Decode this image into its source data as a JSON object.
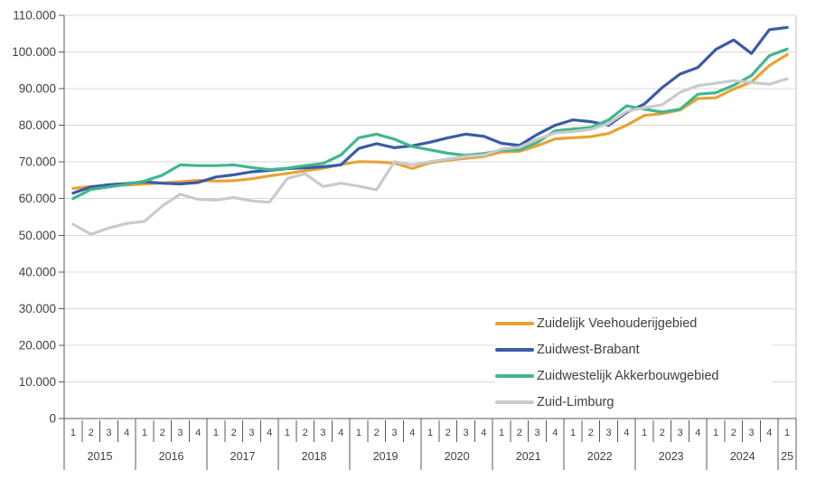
{
  "chart_data": {
    "type": "line",
    "title": "",
    "xlabel": "",
    "ylabel": "",
    "ylim": [
      0,
      110000
    ],
    "grid": true,
    "legend_position": "inside-bottom-right",
    "y_axis": {
      "ticks": [
        {
          "v": 0,
          "label": "0"
        },
        {
          "v": 10000,
          "label": "10.000"
        },
        {
          "v": 20000,
          "label": "20.000"
        },
        {
          "v": 30000,
          "label": "30.000"
        },
        {
          "v": 40000,
          "label": "40.000"
        },
        {
          "v": 50000,
          "label": "50.000"
        },
        {
          "v": 60000,
          "label": "60.000"
        },
        {
          "v": 70000,
          "label": "70.000"
        },
        {
          "v": 80000,
          "label": "80.000"
        },
        {
          "v": 90000,
          "label": "90.000"
        },
        {
          "v": 100000,
          "label": "100.000"
        },
        {
          "v": 110000,
          "label": "110.000"
        }
      ]
    },
    "x_axis": {
      "years": [
        {
          "label": "2015",
          "quarters": [
            "1",
            "2",
            "3",
            "4"
          ]
        },
        {
          "label": "2016",
          "quarters": [
            "1",
            "2",
            "3",
            "4"
          ]
        },
        {
          "label": "2017",
          "quarters": [
            "1",
            "2",
            "3",
            "4"
          ]
        },
        {
          "label": "2018",
          "quarters": [
            "1",
            "2",
            "3",
            "4"
          ]
        },
        {
          "label": "2019",
          "quarters": [
            "1",
            "2",
            "3",
            "4"
          ]
        },
        {
          "label": "2020",
          "quarters": [
            "1",
            "2",
            "3",
            "4"
          ]
        },
        {
          "label": "2021",
          "quarters": [
            "1",
            "2",
            "3",
            "4"
          ]
        },
        {
          "label": "2022",
          "quarters": [
            "1",
            "2",
            "3",
            "4"
          ]
        },
        {
          "label": "2023",
          "quarters": [
            "1",
            "2",
            "3",
            "4"
          ]
        },
        {
          "label": "2024",
          "quarters": [
            "1",
            "2",
            "3",
            "4"
          ]
        },
        {
          "label": "25",
          "quarters": [
            "1"
          ]
        }
      ]
    },
    "series": [
      {
        "name": "Zuidelijk Veehouderijgebied",
        "color": "#E8A235",
        "values": [
          62800,
          63300,
          63600,
          63700,
          64000,
          64300,
          64600,
          65000,
          64800,
          64900,
          65400,
          66200,
          66900,
          67600,
          68300,
          69300,
          70100,
          70000,
          69700,
          68200,
          69800,
          70500,
          71000,
          71500,
          72700,
          72900,
          74400,
          76300,
          76600,
          76900,
          77800,
          80000,
          82700,
          83200,
          84200,
          87300,
          87500,
          89900,
          91800,
          96300,
          99300
        ]
      },
      {
        "name": "Zuidwest-Brabant",
        "color": "#3B5BA5",
        "values": [
          61500,
          63200,
          63800,
          64100,
          64600,
          64200,
          64000,
          64400,
          65900,
          66500,
          67300,
          67700,
          68200,
          68400,
          68700,
          69200,
          73700,
          75000,
          73900,
          74400,
          75400,
          76600,
          77600,
          77000,
          75100,
          74500,
          77500,
          80000,
          81500,
          81000,
          80000,
          83500,
          85800,
          90300,
          94000,
          95800,
          100700,
          103300,
          99600,
          106100,
          106700
        ]
      },
      {
        "name": "Zuidwestelijk Akkerbouwgebied",
        "color": "#41B68E",
        "values": [
          60000,
          62500,
          63200,
          63900,
          64800,
          66400,
          69200,
          69000,
          69000,
          69200,
          68500,
          67900,
          68300,
          69000,
          69600,
          71900,
          76600,
          77600,
          76200,
          74200,
          73300,
          72400,
          71800,
          72300,
          73200,
          73300,
          75300,
          78500,
          79000,
          79400,
          81500,
          85300,
          84400,
          83600,
          84400,
          88500,
          88900,
          90900,
          93600,
          99000,
          100800
        ]
      },
      {
        "name": "Zuid-Limburg",
        "color": "#C8CBCC",
        "values": [
          53000,
          50300,
          52000,
          53200,
          53800,
          58000,
          61200,
          59800,
          59600,
          60300,
          59400,
          59000,
          65500,
          66800,
          63300,
          64200,
          63400,
          62400,
          70100,
          69200,
          70100,
          70800,
          71500,
          71900,
          73500,
          74000,
          76200,
          77900,
          78300,
          78900,
          80500,
          83800,
          84800,
          85600,
          89000,
          90800,
          91500,
          92200,
          91700,
          91200,
          92700
        ]
      }
    ],
    "colors": {
      "grid": "#D9D9D9",
      "axis": "#595959",
      "plot_right_border": "#BFBFBF",
      "text": "#404040"
    }
  }
}
